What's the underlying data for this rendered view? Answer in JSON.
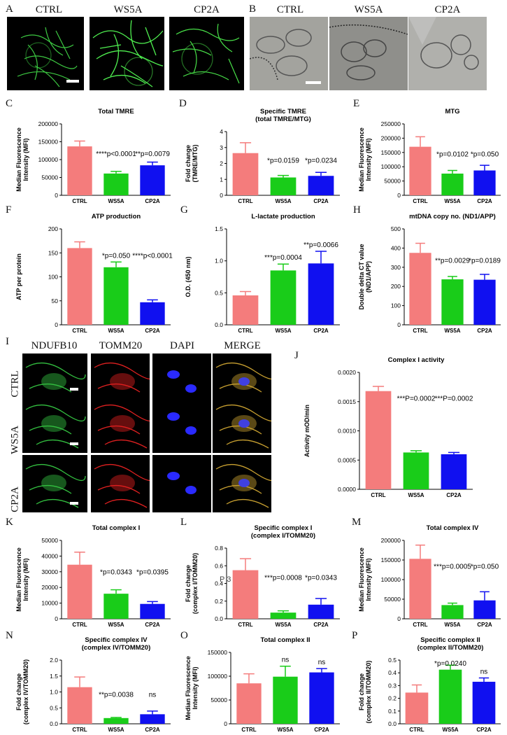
{
  "panel_letters": [
    "A",
    "B",
    "C",
    "D",
    "E",
    "F",
    "G",
    "H",
    "I",
    "J",
    "K",
    "L",
    "M",
    "N",
    "O",
    "P"
  ],
  "panel_a": {
    "labels": [
      "CTRL",
      "WS5A",
      "CP2A"
    ]
  },
  "panel_b": {
    "labels": [
      "CTRL",
      "WS5A",
      "CP2A"
    ]
  },
  "panel_i": {
    "columns": [
      "NDUFB10",
      "TOMM20",
      "DAPI",
      "MERGE"
    ],
    "rows": [
      "CTRL",
      "WS5A",
      "CP2A"
    ]
  },
  "panel_l_overlay": "P    3",
  "colors": {
    "CTRL": "#f47c7c",
    "WS5A": "#19cc19",
    "CP2A": "#1010f0"
  },
  "chart_data": [
    {
      "id": "C",
      "type": "bar",
      "title": "Total TMRE",
      "ylabel": "Median Fluorescence\nIntensity (MFI)",
      "categories": [
        "CTRL",
        "WS5A",
        "CP2A"
      ],
      "values": [
        137000,
        61000,
        84000
      ],
      "errors": [
        15000,
        6000,
        9000
      ],
      "ylim": [
        0,
        200000
      ],
      "yticks": [
        "0",
        "50000",
        "100000",
        "150000",
        "200000"
      ],
      "annotations": [
        "****p<0.0001",
        "**p=0.0079"
      ]
    },
    {
      "id": "D",
      "type": "bar",
      "title": "Specific TMRE\n(total TMRE/MTG)",
      "ylabel": "Fold change\n(TMRE/MTG)",
      "categories": [
        "CTRL",
        "WS5A",
        "CP2A"
      ],
      "values": [
        2.65,
        1.12,
        1.22
      ],
      "errors": [
        0.65,
        0.13,
        0.22
      ],
      "ylim": [
        0,
        4
      ],
      "yticks": [
        "0",
        "1",
        "2",
        "3",
        "4"
      ],
      "annotations": [
        "*p=0.0159",
        "*p=0.0234"
      ]
    },
    {
      "id": "E",
      "type": "bar",
      "title": "MTG",
      "ylabel": "Median Fluorescence\nIntensity (MFI)",
      "categories": [
        "CTRL",
        "WS5A",
        "CP2A"
      ],
      "values": [
        170000,
        76000,
        87000
      ],
      "errors": [
        35000,
        11000,
        18000
      ],
      "ylim": [
        0,
        250000
      ],
      "yticks": [
        "0",
        "50000",
        "100000",
        "150000",
        "200000",
        "250000"
      ],
      "annotations": [
        "*p=0.0102",
        "*p=0.050"
      ]
    },
    {
      "id": "F",
      "type": "bar",
      "title": "ATP production",
      "ylabel": "ATP per protein",
      "categories": [
        "CTRL",
        "WS5A",
        "CP2A"
      ],
      "values": [
        160,
        120,
        47
      ],
      "errors": [
        13,
        11,
        5
      ],
      "ylim": [
        0,
        200
      ],
      "yticks": [
        "0",
        "50",
        "100",
        "150",
        "200"
      ],
      "annotations": [
        "*p=0.050",
        "****p<0.0001"
      ]
    },
    {
      "id": "G",
      "type": "bar",
      "title": "L-lactate production",
      "ylabel": "O.D. (450 nm)",
      "categories": [
        "CTRL",
        "WS5A",
        "CP2A"
      ],
      "values": [
        0.46,
        0.85,
        0.96
      ],
      "errors": [
        0.06,
        0.1,
        0.19
      ],
      "ylim": [
        0,
        1.5
      ],
      "yticks": [
        "0.0",
        "0.5",
        "1.0",
        "1.5"
      ],
      "annotations": [
        "***p=0.0004",
        "**p=0.0066"
      ]
    },
    {
      "id": "H",
      "type": "bar",
      "title": "mtDNA copy no. (ND1/APP)",
      "ylabel": "Double delta CT value\n(ND1/APP)",
      "categories": [
        "CTRL",
        "WS5A",
        "CP2A"
      ],
      "values": [
        375,
        237,
        235
      ],
      "errors": [
        50,
        15,
        28
      ],
      "ylim": [
        0,
        500
      ],
      "yticks": [
        "0",
        "100",
        "200",
        "300",
        "400",
        "500"
      ],
      "annotations": [
        "**p=0.0029",
        "*p=0.0189"
      ]
    },
    {
      "id": "J",
      "type": "bar",
      "title": "Complex I activity",
      "ylabel": "Activity mOD/min",
      "categories": [
        "CTRL",
        "WS5A",
        "CP2A"
      ],
      "values": [
        0.00168,
        0.00063,
        0.0006
      ],
      "errors": [
        8e-05,
        3e-05,
        3e-05
      ],
      "ylim": [
        0,
        0.002
      ],
      "yticks": [
        "0.0000",
        "0.0005",
        "0.0010",
        "0.0015",
        "0.0020"
      ],
      "annotations": [
        "***P=0.0002",
        "***P=0.0002"
      ]
    },
    {
      "id": "K",
      "type": "bar",
      "title": "Total complex I",
      "ylabel": "Median Fluorescence\nIntensity (MFI)",
      "categories": [
        "CTRL",
        "WS5A",
        "CP2A"
      ],
      "values": [
        34500,
        16000,
        9500
      ],
      "errors": [
        8000,
        2500,
        1500
      ],
      "ylim": [
        0,
        50000
      ],
      "yticks": [
        "0",
        "10000",
        "20000",
        "30000",
        "40000",
        "50000"
      ],
      "annotations": [
        "*p=0.0343",
        "*p=0.0395"
      ]
    },
    {
      "id": "L",
      "type": "bar",
      "title": "Specific complex I\n(complex I/TOMM20)",
      "ylabel": "Fold change\n(complex I/TOMM20)",
      "categories": [
        "CTRL",
        "WS5A",
        "CP2A"
      ],
      "values": [
        0.55,
        0.07,
        0.16
      ],
      "errors": [
        0.13,
        0.02,
        0.07
      ],
      "ylim": [
        0,
        0.8
      ],
      "yticks": [
        "0.0",
        "0.2",
        "0.4",
        "0.6",
        "0.8"
      ],
      "annotations": [
        "***p=0.0008",
        "*p=0.0343"
      ]
    },
    {
      "id": "M",
      "type": "bar",
      "title": "Total complex IV",
      "ylabel": "Median Fluorescence\nIntensity (MFI)",
      "categories": [
        "CTRL",
        "WS5A",
        "CP2A"
      ],
      "values": [
        153000,
        35000,
        47000
      ],
      "errors": [
        35000,
        5000,
        22000
      ],
      "ylim": [
        0,
        200000
      ],
      "yticks": [
        "0",
        "50000",
        "100000",
        "150000",
        "200000"
      ],
      "annotations": [
        "***p=0.0005",
        "*p=0.050"
      ]
    },
    {
      "id": "N",
      "type": "bar",
      "title": "Specific complex IV\n(complex IV/TOMM20)",
      "ylabel": "Fold change\n(complex IV/TOMM20)",
      "categories": [
        "CTRL",
        "WS5A",
        "CP2A"
      ],
      "values": [
        1.15,
        0.18,
        0.3
      ],
      "errors": [
        0.32,
        0.02,
        0.1
      ],
      "ylim": [
        0,
        2.0
      ],
      "yticks": [
        "0.0",
        "0.5",
        "1.0",
        "1.5",
        "2.0"
      ],
      "annotations": [
        "**p=0.0038",
        "ns"
      ]
    },
    {
      "id": "O",
      "type": "bar",
      "title": "Total complex II",
      "ylabel": "Median Fluorescence\nIntensity (MFI)",
      "categories": [
        "CTRL",
        "WS5A",
        "CP2A"
      ],
      "values": [
        85000,
        99000,
        108000
      ],
      "errors": [
        20000,
        22000,
        8000
      ],
      "ylim": [
        0,
        150000
      ],
      "yticks": [
        "0",
        "50000",
        "100000",
        "150000"
      ],
      "annotations": [
        "ns",
        "ns"
      ]
    },
    {
      "id": "P",
      "type": "bar",
      "title": "Specific complex II\n(complex II/TOMM20)",
      "ylabel": "Fold change\n(complex II/TOMM20)",
      "categories": [
        "CTRL",
        "WS5A",
        "CP2A"
      ],
      "values": [
        0.245,
        0.425,
        0.33
      ],
      "errors": [
        0.06,
        0.035,
        0.03
      ],
      "ylim": [
        0,
        0.5
      ],
      "yticks": [
        "0.0",
        "0.1",
        "0.2",
        "0.3",
        "0.4",
        "0.5"
      ],
      "annotations": [
        "*p=0.0240",
        "ns"
      ]
    }
  ]
}
